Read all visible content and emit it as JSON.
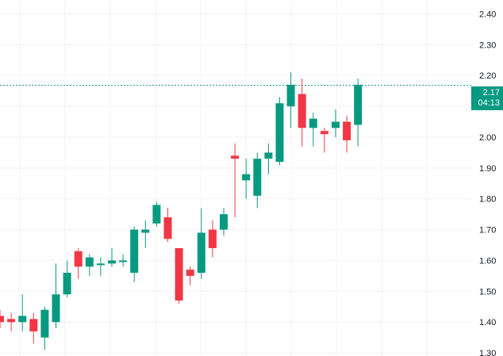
{
  "chart_data": {
    "type": "candlestick",
    "y_ticks": [
      "2.40",
      "2.30",
      "2.20",
      "2.10",
      "2.00",
      "1.90",
      "1.80",
      "1.70",
      "1.60",
      "1.50",
      "1.40",
      "1.30"
    ],
    "y_range": [
      1.29,
      2.445
    ],
    "grid": true,
    "colors": {
      "up": "#089981",
      "down": "#f23645",
      "grid": "#f0f3fa",
      "price_line": "#089981"
    },
    "last_price": {
      "value": "2.17",
      "countdown": "04:13",
      "level": 2.168
    },
    "candles": [
      {
        "o": 1.42,
        "h": 1.44,
        "l": 1.38,
        "c": 1.4
      },
      {
        "o": 1.41,
        "h": 1.43,
        "l": 1.37,
        "c": 1.4
      },
      {
        "o": 1.4,
        "h": 1.49,
        "l": 1.37,
        "c": 1.42
      },
      {
        "o": 1.41,
        "h": 1.43,
        "l": 1.33,
        "c": 1.37
      },
      {
        "o": 1.35,
        "h": 1.45,
        "l": 1.31,
        "c": 1.44
      },
      {
        "o": 1.4,
        "h": 1.59,
        "l": 1.38,
        "c": 1.49
      },
      {
        "o": 1.49,
        "h": 1.6,
        "l": 1.48,
        "c": 1.56
      },
      {
        "o": 1.63,
        "h": 1.64,
        "l": 1.54,
        "c": 1.58
      },
      {
        "o": 1.58,
        "h": 1.62,
        "l": 1.55,
        "c": 1.61
      },
      {
        "o": 1.59,
        "h": 1.61,
        "l": 1.55,
        "c": 1.59
      },
      {
        "o": 1.59,
        "h": 1.64,
        "l": 1.58,
        "c": 1.6
      },
      {
        "o": 1.6,
        "h": 1.62,
        "l": 1.58,
        "c": 1.6
      },
      {
        "o": 1.56,
        "h": 1.71,
        "l": 1.53,
        "c": 1.7
      },
      {
        "o": 1.69,
        "h": 1.73,
        "l": 1.64,
        "c": 1.7
      },
      {
        "o": 1.72,
        "h": 1.79,
        "l": 1.71,
        "c": 1.78
      },
      {
        "o": 1.74,
        "h": 1.77,
        "l": 1.66,
        "c": 1.67
      },
      {
        "o": 1.64,
        "h": 1.64,
        "l": 1.46,
        "c": 1.47
      },
      {
        "o": 1.57,
        "h": 1.58,
        "l": 1.52,
        "c": 1.55
      },
      {
        "o": 1.56,
        "h": 1.77,
        "l": 1.54,
        "c": 1.69
      },
      {
        "o": 1.7,
        "h": 1.73,
        "l": 1.61,
        "c": 1.64
      },
      {
        "o": 1.7,
        "h": 1.77,
        "l": 1.68,
        "c": 1.75
      },
      {
        "o": 1.94,
        "h": 1.98,
        "l": 1.74,
        "c": 1.93
      },
      {
        "o": 1.86,
        "h": 1.93,
        "l": 1.8,
        "c": 1.88
      },
      {
        "o": 1.81,
        "h": 1.95,
        "l": 1.77,
        "c": 1.93
      },
      {
        "o": 1.93,
        "h": 1.98,
        "l": 1.88,
        "c": 1.95
      },
      {
        "o": 1.92,
        "h": 2.13,
        "l": 1.91,
        "c": 2.11
      },
      {
        "o": 2.1,
        "h": 2.21,
        "l": 2.03,
        "c": 2.17
      },
      {
        "o": 2.14,
        "h": 2.19,
        "l": 1.97,
        "c": 2.03
      },
      {
        "o": 2.03,
        "h": 2.08,
        "l": 1.97,
        "c": 2.06
      },
      {
        "o": 2.02,
        "h": 2.03,
        "l": 1.95,
        "c": 2.01
      },
      {
        "o": 2.03,
        "h": 2.09,
        "l": 2.0,
        "c": 2.05
      },
      {
        "o": 2.05,
        "h": 2.07,
        "l": 1.95,
        "c": 1.99
      },
      {
        "o": 2.04,
        "h": 2.19,
        "l": 1.97,
        "c": 2.17
      }
    ]
  }
}
